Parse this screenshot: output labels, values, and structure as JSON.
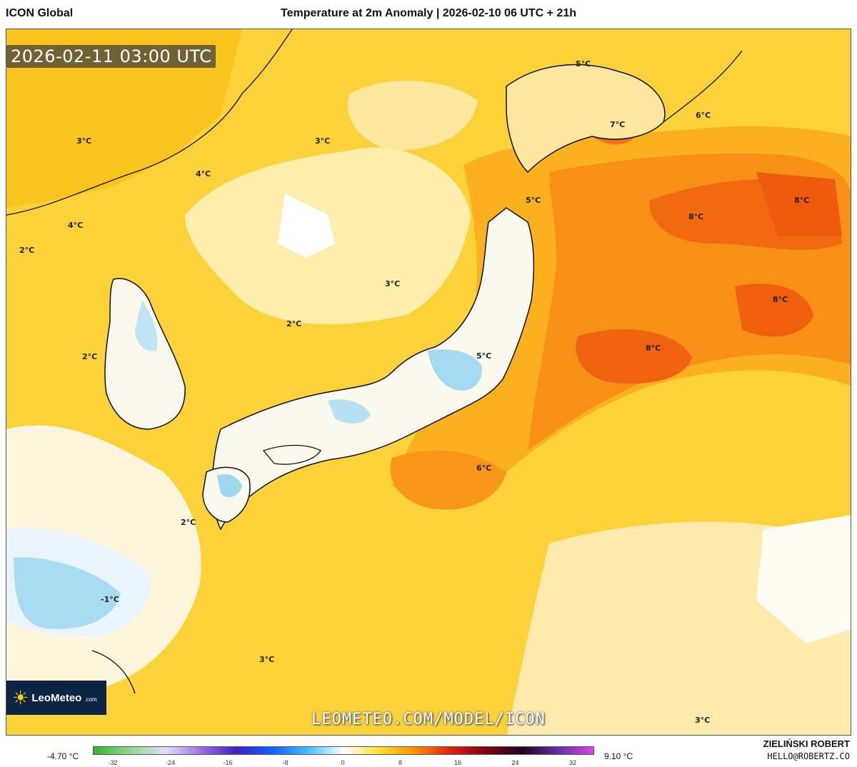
{
  "header": {
    "model": "ICON Global",
    "title": "Temperature at 2m Anomaly | 2026-02-10 06 UTC + 21h"
  },
  "map": {
    "valid_time": "2026-02-11 03:00 UTC",
    "watermark": "LEOMETEO.COM/MODEL/ICON",
    "isotherm_labels": [
      {
        "text": "3°C"
      },
      {
        "text": "4°C"
      },
      {
        "text": "3°C"
      },
      {
        "text": "4°C"
      },
      {
        "text": "2°C"
      },
      {
        "text": "2°C"
      },
      {
        "text": "2°C"
      },
      {
        "text": "3°C"
      },
      {
        "text": "5°C"
      },
      {
        "text": "7°C"
      },
      {
        "text": "6°C"
      },
      {
        "text": "5°C"
      },
      {
        "text": "8°C"
      },
      {
        "text": "8°C"
      },
      {
        "text": "8°C"
      },
      {
        "text": "8°C"
      },
      {
        "text": "5°C"
      },
      {
        "text": "6°C"
      },
      {
        "text": "2°C"
      },
      {
        "text": "-1°C"
      },
      {
        "text": "3°C"
      },
      {
        "text": "3°C"
      }
    ]
  },
  "logo": {
    "name": "LeoMeteo",
    "domain": ".com"
  },
  "legend": {
    "min_label": "-4.70 °C",
    "max_label": "9.10 °C",
    "ticks": [
      "-32",
      "-24",
      "-16",
      "-8",
      "0",
      "8",
      "16",
      "24",
      "32"
    ],
    "colors": [
      "#2fb52f",
      "#8fd68f",
      "#e0e0ff",
      "#a070e0",
      "#4020c0",
      "#1060ff",
      "#40c0ff",
      "#ffffff",
      "#ffe030",
      "#ff9000",
      "#e02010",
      "#800010",
      "#200020",
      "#6030a0",
      "#e040f0"
    ]
  },
  "footer": {
    "author": "ZIELIŃSKI ROBERT",
    "email": "HELLO@ROBERTZ.CO"
  }
}
